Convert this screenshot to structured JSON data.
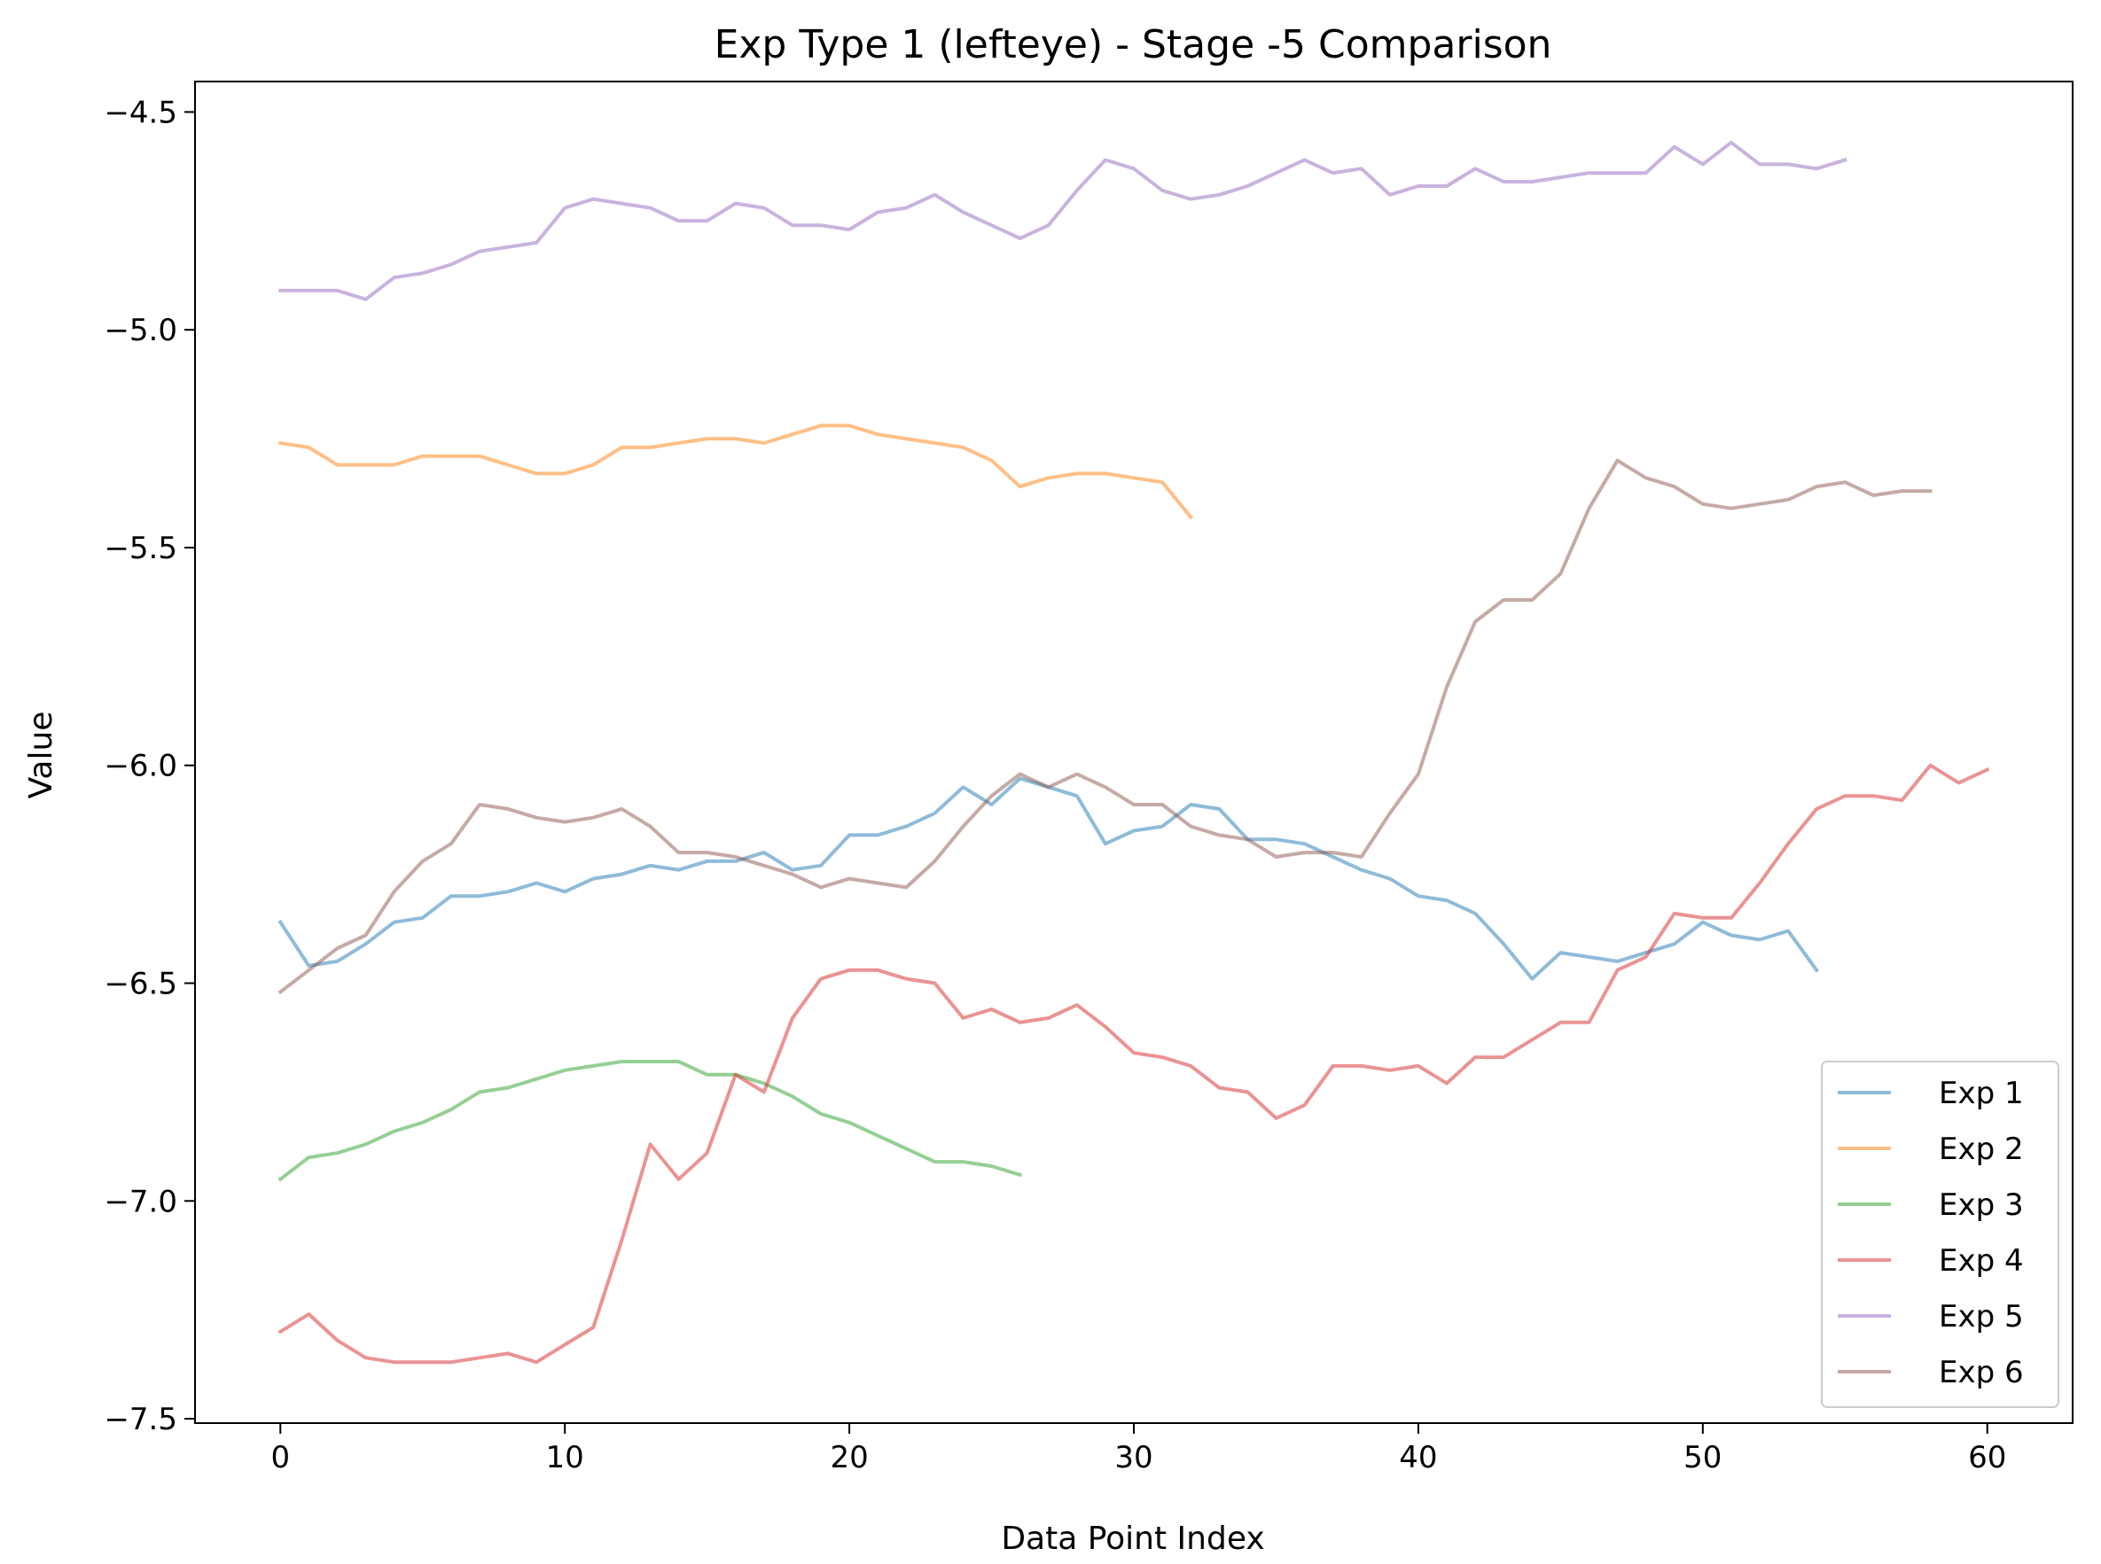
{
  "chart_data": {
    "type": "line",
    "title": "Exp Type 1 (lefteye) - Stage -5 Comparison",
    "xlabel": "Data Point Index",
    "ylabel": "Value",
    "xlim": [
      -3,
      63
    ],
    "ylim": [
      -7.51,
      -4.43
    ],
    "xticks": [
      0,
      10,
      20,
      30,
      40,
      50,
      60
    ],
    "yticks": [
      -7.5,
      -7.0,
      -6.5,
      -6.0,
      -5.5,
      -5.0,
      -4.5
    ],
    "xtick_labels": [
      "0",
      "10",
      "20",
      "30",
      "40",
      "50",
      "60"
    ],
    "ytick_labels": [
      "−7.5",
      "−7.0",
      "−6.5",
      "−6.0",
      "−5.5",
      "−5.0",
      "−4.5"
    ],
    "grid": false,
    "legend_position": "lower-right",
    "series": [
      {
        "name": "Exp 1",
        "color": "#1f77b4",
        "values": [
          -6.36,
          -6.46,
          -6.45,
          -6.41,
          -6.36,
          -6.35,
          -6.3,
          -6.3,
          -6.29,
          -6.27,
          -6.29,
          -6.26,
          -6.25,
          -6.23,
          -6.24,
          -6.22,
          -6.22,
          -6.2,
          -6.24,
          -6.23,
          -6.16,
          -6.16,
          -6.14,
          -6.11,
          -6.05,
          -6.09,
          -6.03,
          -6.05,
          -6.07,
          -6.18,
          -6.15,
          -6.14,
          -6.09,
          -6.1,
          -6.17,
          -6.17,
          -6.18,
          -6.21,
          -6.24,
          -6.26,
          -6.3,
          -6.31,
          -6.34,
          -6.41,
          -6.49,
          -6.43,
          -6.44,
          -6.45,
          -6.43,
          -6.41,
          -6.36,
          -6.39,
          -6.4,
          -6.38,
          -6.47
        ]
      },
      {
        "name": "Exp 2",
        "color": "#ff7f0e",
        "values": [
          -5.26,
          -5.27,
          -5.31,
          -5.31,
          -5.31,
          -5.29,
          -5.29,
          -5.29,
          -5.31,
          -5.33,
          -5.33,
          -5.31,
          -5.27,
          -5.27,
          -5.26,
          -5.25,
          -5.25,
          -5.26,
          -5.24,
          -5.22,
          -5.22,
          -5.24,
          -5.25,
          -5.26,
          -5.27,
          -5.3,
          -5.36,
          -5.34,
          -5.33,
          -5.33,
          -5.34,
          -5.35,
          -5.43
        ]
      },
      {
        "name": "Exp 3",
        "color": "#2ca02c",
        "values": [
          -6.95,
          -6.9,
          -6.89,
          -6.87,
          -6.84,
          -6.82,
          -6.79,
          -6.75,
          -6.74,
          -6.72,
          -6.7,
          -6.69,
          -6.68,
          -6.68,
          -6.68,
          -6.71,
          -6.71,
          -6.73,
          -6.76,
          -6.8,
          -6.82,
          -6.85,
          -6.88,
          -6.91,
          -6.91,
          -6.92,
          -6.94
        ]
      },
      {
        "name": "Exp 4",
        "color": "#d62728",
        "values": [
          -7.3,
          -7.26,
          -7.32,
          -7.36,
          -7.37,
          -7.37,
          -7.37,
          -7.36,
          -7.35,
          -7.37,
          -7.33,
          -7.29,
          -7.09,
          -6.87,
          -6.95,
          -6.89,
          -6.71,
          -6.75,
          -6.58,
          -6.49,
          -6.47,
          -6.47,
          -6.49,
          -6.5,
          -6.58,
          -6.56,
          -6.59,
          -6.58,
          -6.55,
          -6.6,
          -6.66,
          -6.67,
          -6.69,
          -6.74,
          -6.75,
          -6.81,
          -6.78,
          -6.69,
          -6.69,
          -6.7,
          -6.69,
          -6.73,
          -6.67,
          -6.67,
          -6.63,
          -6.59,
          -6.59,
          -6.47,
          -6.44,
          -6.34,
          -6.35,
          -6.35,
          -6.27,
          -6.18,
          -6.1,
          -6.07,
          -6.07,
          -6.08,
          -6.0,
          -6.04,
          -6.01
        ]
      },
      {
        "name": "Exp 5",
        "color": "#9467bd",
        "values": [
          -4.91,
          -4.91,
          -4.91,
          -4.93,
          -4.88,
          -4.87,
          -4.85,
          -4.82,
          -4.81,
          -4.8,
          -4.72,
          -4.7,
          -4.71,
          -4.72,
          -4.75,
          -4.75,
          -4.71,
          -4.72,
          -4.76,
          -4.76,
          -4.77,
          -4.73,
          -4.72,
          -4.69,
          -4.73,
          -4.76,
          -4.79,
          -4.76,
          -4.68,
          -4.61,
          -4.63,
          -4.68,
          -4.7,
          -4.69,
          -4.67,
          -4.64,
          -4.61,
          -4.64,
          -4.63,
          -4.69,
          -4.67,
          -4.67,
          -4.63,
          -4.66,
          -4.66,
          -4.65,
          -4.64,
          -4.64,
          -4.64,
          -4.58,
          -4.62,
          -4.57,
          -4.62,
          -4.62,
          -4.63,
          -4.61
        ]
      },
      {
        "name": "Exp 6",
        "color": "#8c564b",
        "values": [
          -6.52,
          -6.47,
          -6.42,
          -6.39,
          -6.29,
          -6.22,
          -6.18,
          -6.09,
          -6.1,
          -6.12,
          -6.13,
          -6.12,
          -6.1,
          -6.14,
          -6.2,
          -6.2,
          -6.21,
          -6.23,
          -6.25,
          -6.28,
          -6.26,
          -6.27,
          -6.28,
          -6.22,
          -6.14,
          -6.07,
          -6.02,
          -6.05,
          -6.02,
          -6.05,
          -6.09,
          -6.09,
          -6.14,
          -6.16,
          -6.17,
          -6.21,
          -6.2,
          -6.2,
          -6.21,
          -6.11,
          -6.02,
          -5.82,
          -5.67,
          -5.62,
          -5.62,
          -5.56,
          -5.41,
          -5.3,
          -5.34,
          -5.36,
          -5.4,
          -5.41,
          -5.4,
          -5.39,
          -5.36,
          -5.35,
          -5.38,
          -5.37,
          -5.37
        ]
      }
    ]
  }
}
